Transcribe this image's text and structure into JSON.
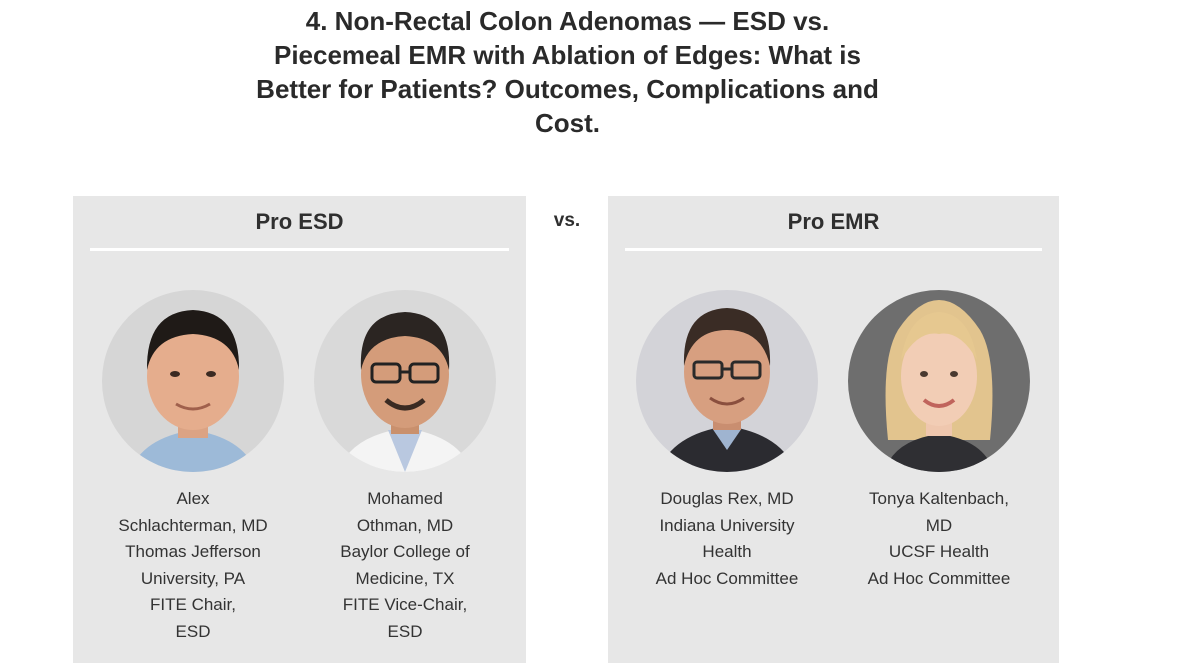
{
  "title_lines": [
    "4. Non-Rectal Colon Adenomas — ESD vs.",
    "Piecemeal EMR with Ablation of Edges: What is",
    "Better for Patients? Outcomes, Complications and",
    "Cost."
  ],
  "vs_label": "vs.",
  "left_panel": {
    "header": "Pro ESD",
    "speakers": [
      {
        "lines": [
          "Alex",
          "Schlachterman, MD",
          "Thomas Jefferson",
          "University, PA",
          "FITE Chair,",
          "ESD"
        ]
      },
      {
        "lines": [
          "Mohamed",
          "Othman, MD",
          "Baylor College of",
          "Medicine, TX",
          "FITE Vice-Chair,",
          "ESD"
        ]
      }
    ]
  },
  "right_panel": {
    "header": "Pro EMR",
    "speakers": [
      {
        "lines": [
          "Douglas Rex, MD",
          "Indiana University",
          "Health",
          "Ad Hoc Committee"
        ]
      },
      {
        "lines": [
          "Tonya Kaltenbach,",
          "MD",
          "UCSF Health",
          "Ad Hoc Committee"
        ]
      }
    ]
  },
  "colors": {
    "panel_bg": "#e7e7e7",
    "text": "#2b2b2b",
    "divider": "#ffffff"
  }
}
